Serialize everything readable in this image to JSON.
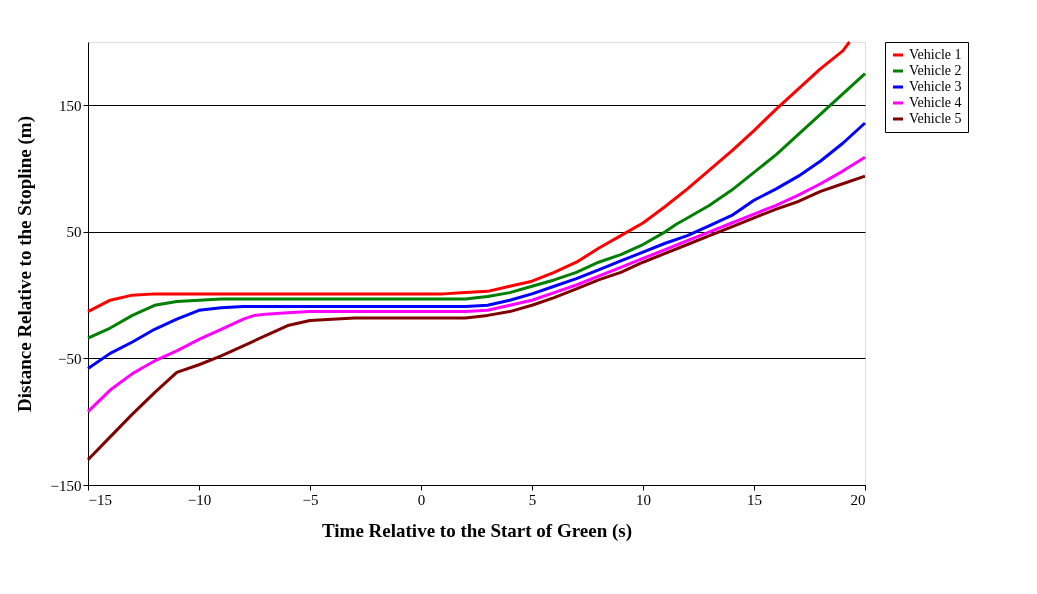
{
  "chart_data": {
    "type": "line",
    "xlabel": "Time Relative to the Start of Green (s)",
    "ylabel": "Distance Relative to the Stopline (m)",
    "xlim": [
      -15,
      20
    ],
    "xticks": [
      -15,
      -10,
      -5,
      0,
      5,
      10,
      15,
      20
    ],
    "ylim": [
      -150,
      200
    ],
    "yticks": [
      -150,
      -50,
      50,
      150
    ],
    "grid": "y",
    "legend": "right",
    "marker": "none",
    "line_style": "solid",
    "series": [
      {
        "name": "Vehicle 1",
        "color": "#ff0000",
        "x": [
          -15,
          -14,
          -13,
          -12,
          -10,
          1,
          2,
          3,
          4,
          5,
          6,
          7,
          8,
          9,
          10,
          11,
          12,
          13,
          14,
          15,
          16,
          17,
          18,
          19,
          19.3
        ],
        "values": [
          -13,
          -4,
          0,
          1,
          1,
          1,
          2,
          3,
          7,
          11,
          18,
          26,
          37,
          47,
          57,
          70,
          84,
          99,
          114,
          130,
          147,
          163,
          179,
          193,
          200
        ]
      },
      {
        "name": "Vehicle 2",
        "color": "#008000",
        "x": [
          -15,
          -14,
          -13,
          -12,
          -11,
          -10,
          -9,
          2,
          3,
          4,
          5,
          6,
          7,
          8,
          9,
          10,
          11,
          11.5,
          12,
          13,
          14,
          15,
          16,
          17,
          18,
          19,
          20
        ],
        "values": [
          -34,
          -26,
          -16,
          -8,
          -5,
          -4,
          -3,
          -3,
          -1,
          2,
          7,
          12,
          18,
          26,
          32,
          40,
          50,
          56,
          61,
          71,
          83,
          97,
          111,
          127,
          143,
          159,
          175
        ]
      },
      {
        "name": "Vehicle 3",
        "color": "#0000ff",
        "x": [
          -15,
          -14,
          -13,
          -12,
          -11,
          -10,
          -9,
          -8,
          2,
          3,
          4,
          5,
          6,
          7,
          8,
          9,
          10,
          11,
          12,
          13,
          14,
          15,
          16,
          17,
          18,
          19,
          20
        ],
        "values": [
          -58,
          -46,
          -37,
          -27,
          -19,
          -12,
          -10,
          -9,
          -9,
          -8,
          -4,
          1,
          7,
          13,
          20,
          27,
          34,
          41,
          47,
          55,
          63,
          75,
          84,
          94,
          106,
          120,
          136
        ]
      },
      {
        "name": "Vehicle 4",
        "color": "#ff00ff",
        "x": [
          -15,
          -14,
          -13,
          -12.5,
          -12,
          -11,
          -10,
          -9,
          -8,
          -7.5,
          -7,
          -6,
          -5,
          2,
          3,
          4,
          5,
          6,
          7,
          8,
          9,
          10,
          11,
          12,
          13,
          14,
          15,
          16,
          17,
          18,
          19,
          20
        ],
        "values": [
          -92,
          -75,
          -62,
          -57,
          -52,
          -44,
          -35,
          -27,
          -19,
          -16,
          -15,
          -14,
          -13,
          -13,
          -12,
          -8,
          -4,
          2,
          8,
          15,
          22,
          29,
          36,
          43,
          50,
          57,
          64,
          71,
          79,
          88,
          98,
          109
        ]
      },
      {
        "name": "Vehicle 5",
        "color": "#800000",
        "x": [
          -15,
          -14,
          -13,
          -12,
          -11,
          -10,
          -9,
          -8,
          -7,
          -6,
          -5,
          -4,
          -3,
          2,
          3,
          4,
          5,
          6,
          7,
          8,
          9,
          10,
          11,
          12,
          13,
          14,
          15,
          16,
          17,
          18,
          19,
          20
        ],
        "values": [
          -130,
          -112,
          -94,
          -77,
          -61,
          -55,
          -48,
          -40,
          -32,
          -24,
          -20,
          -19,
          -18,
          -18,
          -16,
          -13,
          -8,
          -2,
          5,
          12,
          18,
          26,
          33,
          40,
          47,
          54,
          61,
          68,
          74,
          82,
          88,
          94
        ]
      }
    ]
  }
}
